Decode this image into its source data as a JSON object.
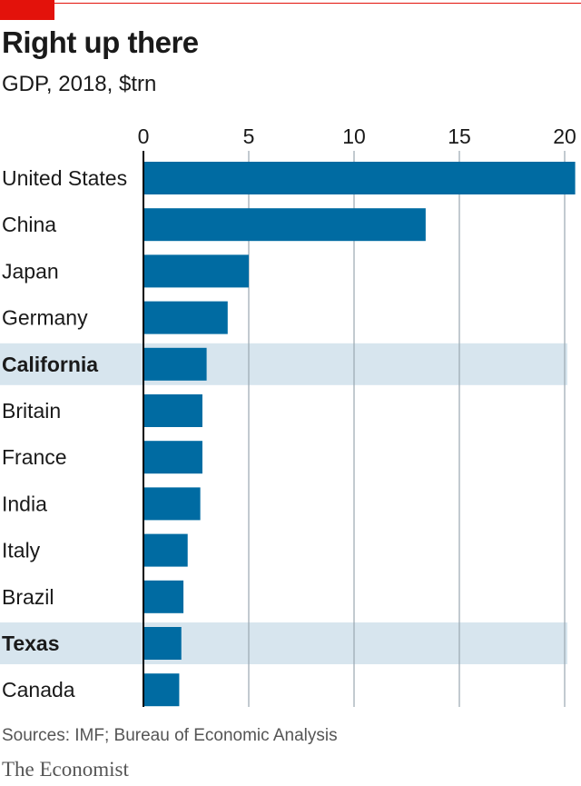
{
  "theme": {
    "accent_red": "#e3120b",
    "bar_color": "#006ba2",
    "highlight_band": "#d7e5ee",
    "grid_color": "#9aa7b1",
    "text_color": "#1a1a1a",
    "muted_text": "#555555"
  },
  "header": {
    "title": "Right up there",
    "subtitle": "GDP, 2018, $trn"
  },
  "footer": {
    "source": "Sources: IMF; Bureau of Economic Analysis",
    "brand": "The Economist"
  },
  "chart_data": {
    "type": "bar",
    "orientation": "horizontal",
    "title": "Right up there",
    "subtitle": "GDP, 2018, $trn",
    "categories": [
      "United States",
      "China",
      "Japan",
      "Germany",
      "California",
      "Britain",
      "France",
      "India",
      "Italy",
      "Brazil",
      "Texas",
      "Canada"
    ],
    "values": [
      20.5,
      13.4,
      5.0,
      4.0,
      3.0,
      2.8,
      2.8,
      2.7,
      2.1,
      1.9,
      1.8,
      1.7
    ],
    "highlighted": [
      "California",
      "Texas"
    ],
    "xlim": [
      0,
      20
    ],
    "xticks": [
      0,
      5,
      10,
      15,
      20
    ],
    "grid": true,
    "xaxis_position": "top"
  }
}
